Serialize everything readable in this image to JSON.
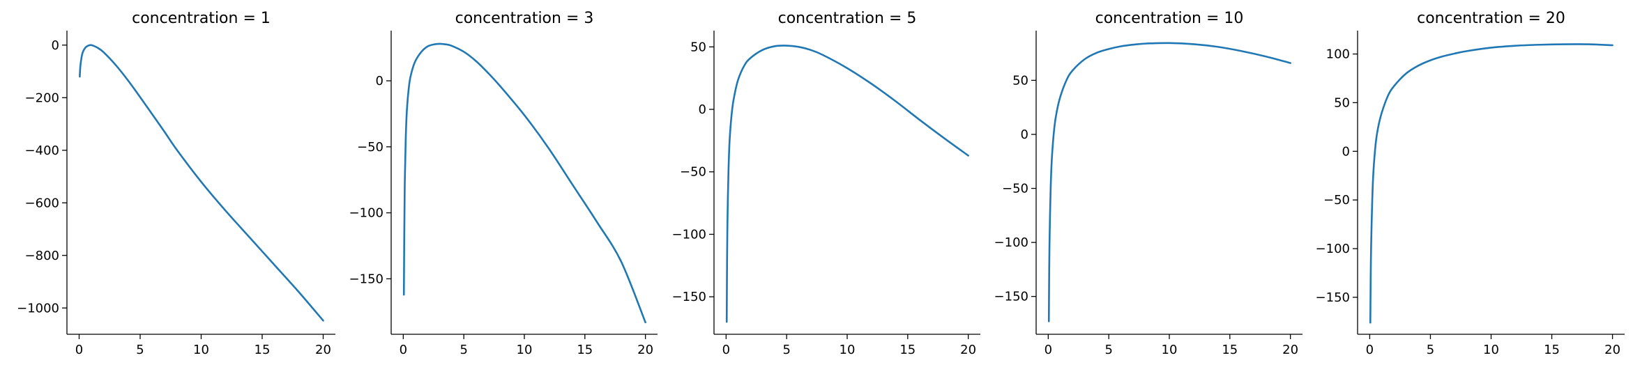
{
  "figure": {
    "line_color": "#1f77b4"
  },
  "chart_data": [
    {
      "type": "line",
      "title": "concentration = 1",
      "xlabel": "",
      "ylabel": "",
      "xlim": [
        -1,
        21
      ],
      "ylim": [
        -1100,
        55
      ],
      "xticks": [
        0,
        5,
        10,
        15,
        20
      ],
      "xtick_labels": [
        "0",
        "5",
        "10",
        "15",
        "20"
      ],
      "yticks": [
        0,
        -200,
        -400,
        -600,
        -800,
        -1000
      ],
      "ytick_labels": [
        "0",
        "−200",
        "−400",
        "−600",
        "−800",
        "−1000"
      ],
      "grid": false,
      "x": [
        0.05,
        0.1,
        0.2,
        0.3,
        0.5,
        0.7,
        1,
        1.5,
        2,
        3,
        4,
        5,
        6,
        7,
        8,
        10,
        12,
        14,
        16,
        18,
        20
      ],
      "y": [
        -120,
        -80,
        -46,
        -27,
        -10,
        -3,
        0,
        -10,
        -27,
        -76,
        -134,
        -198,
        -264,
        -330,
        -398,
        -520,
        -630,
        -733,
        -836,
        -939,
        -1048
      ]
    },
    {
      "type": "line",
      "title": "concentration = 3",
      "xlabel": "",
      "ylabel": "",
      "xlim": [
        -1,
        21
      ],
      "ylim": [
        -192,
        38
      ],
      "xticks": [
        0,
        5,
        10,
        15,
        20
      ],
      "xtick_labels": [
        "0",
        "5",
        "10",
        "15",
        "20"
      ],
      "yticks": [
        0,
        -50,
        -100,
        -150
      ],
      "ytick_labels": [
        "0",
        "−50",
        "−100",
        "−150"
      ],
      "grid": false,
      "x": [
        0.05,
        0.08,
        0.12,
        0.2,
        0.3,
        0.5,
        0.7,
        1,
        1.5,
        2,
        2.5,
        3,
        3.5,
        4,
        5,
        6,
        7,
        8,
        10,
        12,
        14,
        16,
        18,
        20
      ],
      "y": [
        -162,
        -120,
        -80,
        -45,
        -22,
        -2,
        7,
        15,
        22,
        26,
        27.5,
        28,
        27.6,
        26.5,
        22,
        15,
        6,
        -4,
        -26,
        -51,
        -79,
        -107,
        -137,
        -183
      ]
    },
    {
      "type": "line",
      "title": "concentration = 5",
      "xlabel": "",
      "ylabel": "",
      "xlim": [
        -1,
        21
      ],
      "ylim": [
        -180,
        63
      ],
      "xticks": [
        0,
        5,
        10,
        15,
        20
      ],
      "xtick_labels": [
        "0",
        "5",
        "10",
        "15",
        "20"
      ],
      "yticks": [
        50,
        0,
        -50,
        -100,
        -150
      ],
      "ytick_labels": [
        "50",
        "0",
        "−50",
        "−100",
        "−150"
      ],
      "grid": false,
      "x": [
        0.05,
        0.08,
        0.12,
        0.2,
        0.3,
        0.5,
        0.7,
        1,
        1.5,
        2,
        3,
        4,
        5,
        6,
        7,
        8,
        10,
        12,
        14,
        16,
        18,
        20
      ],
      "y": [
        -170,
        -120,
        -85,
        -48,
        -23,
        0,
        12,
        24,
        35,
        41,
        47.5,
        50.5,
        51,
        50,
        47.5,
        43.5,
        33,
        20.5,
        6.5,
        -8.5,
        -23,
        -37
      ]
    },
    {
      "type": "line",
      "title": "concentration = 10",
      "xlabel": "",
      "ylabel": "",
      "xlim": [
        -1,
        21
      ],
      "ylim": [
        -185,
        96
      ],
      "xticks": [
        0,
        5,
        10,
        15,
        20
      ],
      "xtick_labels": [
        "0",
        "5",
        "10",
        "15",
        "20"
      ],
      "yticks": [
        50,
        0,
        -50,
        -100,
        -150
      ],
      "ytick_labels": [
        "50",
        "0",
        "−50",
        "−100",
        "−150"
      ],
      "grid": false,
      "x": [
        0.05,
        0.08,
        0.12,
        0.2,
        0.3,
        0.5,
        0.7,
        1,
        1.5,
        2,
        3,
        4,
        5,
        6,
        7,
        8,
        10,
        12,
        14,
        16,
        18,
        20
      ],
      "y": [
        -173,
        -125,
        -90,
        -50,
        -22,
        6,
        21,
        35,
        50,
        59,
        69.5,
        75.5,
        79,
        81.5,
        83,
        84,
        84.5,
        83.5,
        81,
        77,
        72,
        66
      ]
    },
    {
      "type": "line",
      "title": "concentration = 20",
      "xlabel": "",
      "ylabel": "",
      "xlim": [
        -1,
        21
      ],
      "ylim": [
        -188,
        124
      ],
      "xticks": [
        0,
        5,
        10,
        15,
        20
      ],
      "xtick_labels": [
        "0",
        "5",
        "10",
        "15",
        "20"
      ],
      "yticks": [
        100,
        50,
        0,
        -50,
        -100,
        -150
      ],
      "ytick_labels": [
        "100",
        "50",
        "0",
        "−50",
        "−100",
        "−150"
      ],
      "grid": false,
      "x": [
        0.05,
        0.08,
        0.12,
        0.2,
        0.3,
        0.5,
        0.7,
        1,
        1.5,
        2,
        3,
        4,
        5,
        6,
        7,
        8,
        10,
        12,
        14,
        16,
        18,
        20
      ],
      "y": [
        -176,
        -130,
        -95,
        -54,
        -22,
        9,
        25,
        40,
        57,
        67,
        80,
        88,
        93.5,
        97.5,
        100.5,
        103,
        106.5,
        108.5,
        109.5,
        110,
        110,
        109
      ]
    }
  ]
}
